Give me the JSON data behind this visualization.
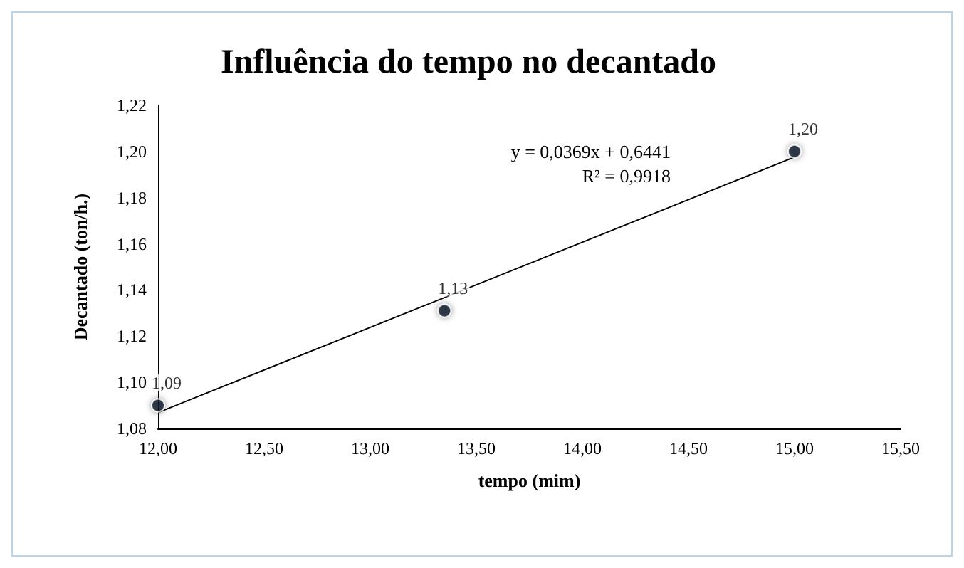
{
  "chart_data": {
    "type": "scatter",
    "title": "Influência do tempo no decantado",
    "xlabel": "tempo (mim)",
    "ylabel": "Decantado (ton/h.)",
    "x": [
      12.0,
      13.35,
      15.0
    ],
    "series": [
      {
        "color": "#0d1b2a",
        "values": [
          1.09,
          1.131,
          1.2
        ],
        "value_labels": [
          "1,09",
          "1,13",
          "1,20"
        ],
        "marker": "circle"
      },
      {
        "type": "line",
        "color": "#000000",
        "x": [
          12.0,
          15.0
        ],
        "values": [
          1.0869,
          1.1976
        ],
        "line_style": "solid",
        "marker": "none"
      }
    ],
    "annotations": [
      "y = 0,0369x + 0,6441",
      "R² = 0,9918"
    ],
    "xlim": [
      12.0,
      15.5
    ],
    "xticks": [
      {
        "value": 12,
        "label": "12,00"
      },
      {
        "value": 12.5,
        "label": "12,50"
      },
      {
        "value": 13,
        "label": "13,00"
      },
      {
        "value": 13.5,
        "label": "13,50"
      },
      {
        "value": 14,
        "label": "14,00"
      },
      {
        "value": 14.5,
        "label": "14,50"
      },
      {
        "value": 15,
        "label": "15,00"
      },
      {
        "value": 15.5,
        "label": "15,50"
      }
    ],
    "ylim": [
      1.08,
      1.22
    ],
    "yticks": [
      {
        "value": 1.08,
        "label": "1,08"
      },
      {
        "value": 1.1,
        "label": "1,10"
      },
      {
        "value": 1.12,
        "label": "1,12"
      },
      {
        "value": 1.14,
        "label": "1,14"
      },
      {
        "value": 1.16,
        "label": "1,16"
      },
      {
        "value": 1.18,
        "label": "1,18"
      },
      {
        "value": 1.2,
        "label": "1,20"
      },
      {
        "value": 1.22,
        "label": "1,22"
      }
    ],
    "grid": false
  }
}
